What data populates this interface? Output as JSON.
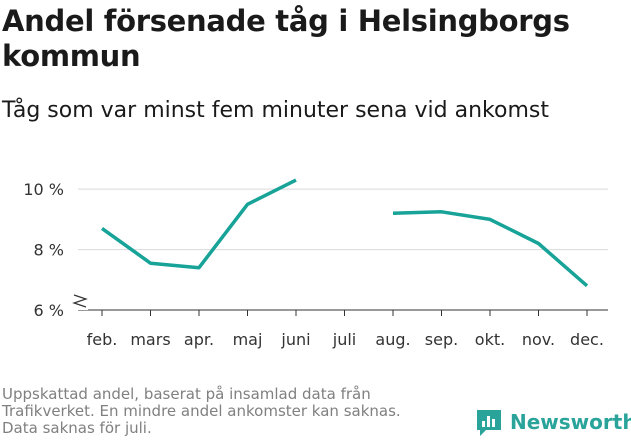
{
  "title": "Andel försenade tåg i Helsingborgs kommun",
  "subtitle": "Tåg som var minst fem minuter sena vid ankomst",
  "footer": {
    "lines": [
      "Uppskattad andel, baserat på insamlad data från",
      "Trafikverket. En mindre andel ankomster kan saknas.",
      "Data saknas för juli."
    ]
  },
  "brand": {
    "name": "Newsworthy",
    "color": "#2aa39a",
    "icon": "newsworthy-logo-icon"
  },
  "colors": {
    "line": "#17a398",
    "grid": "#d9d9d9",
    "axis": "#333333"
  },
  "chart_data": {
    "type": "line",
    "categories": [
      "feb.",
      "mars",
      "apr.",
      "maj",
      "juni",
      "juli",
      "aug.",
      "sep.",
      "okt.",
      "nov.",
      "dec."
    ],
    "series": [
      {
        "name": "Andel försenade tåg",
        "values": [
          8.7,
          7.55,
          7.4,
          9.5,
          10.3,
          null,
          9.2,
          9.25,
          9.0,
          8.2,
          6.8
        ]
      }
    ],
    "y_ticks": [
      6,
      8,
      10
    ],
    "y_tick_labels": [
      "6 %",
      "8 %",
      "10 %"
    ],
    "ylim": [
      6,
      10.8
    ],
    "y_axis_broken": true,
    "unit": "%",
    "xlabel": "",
    "ylabel": "",
    "legend": "none"
  }
}
